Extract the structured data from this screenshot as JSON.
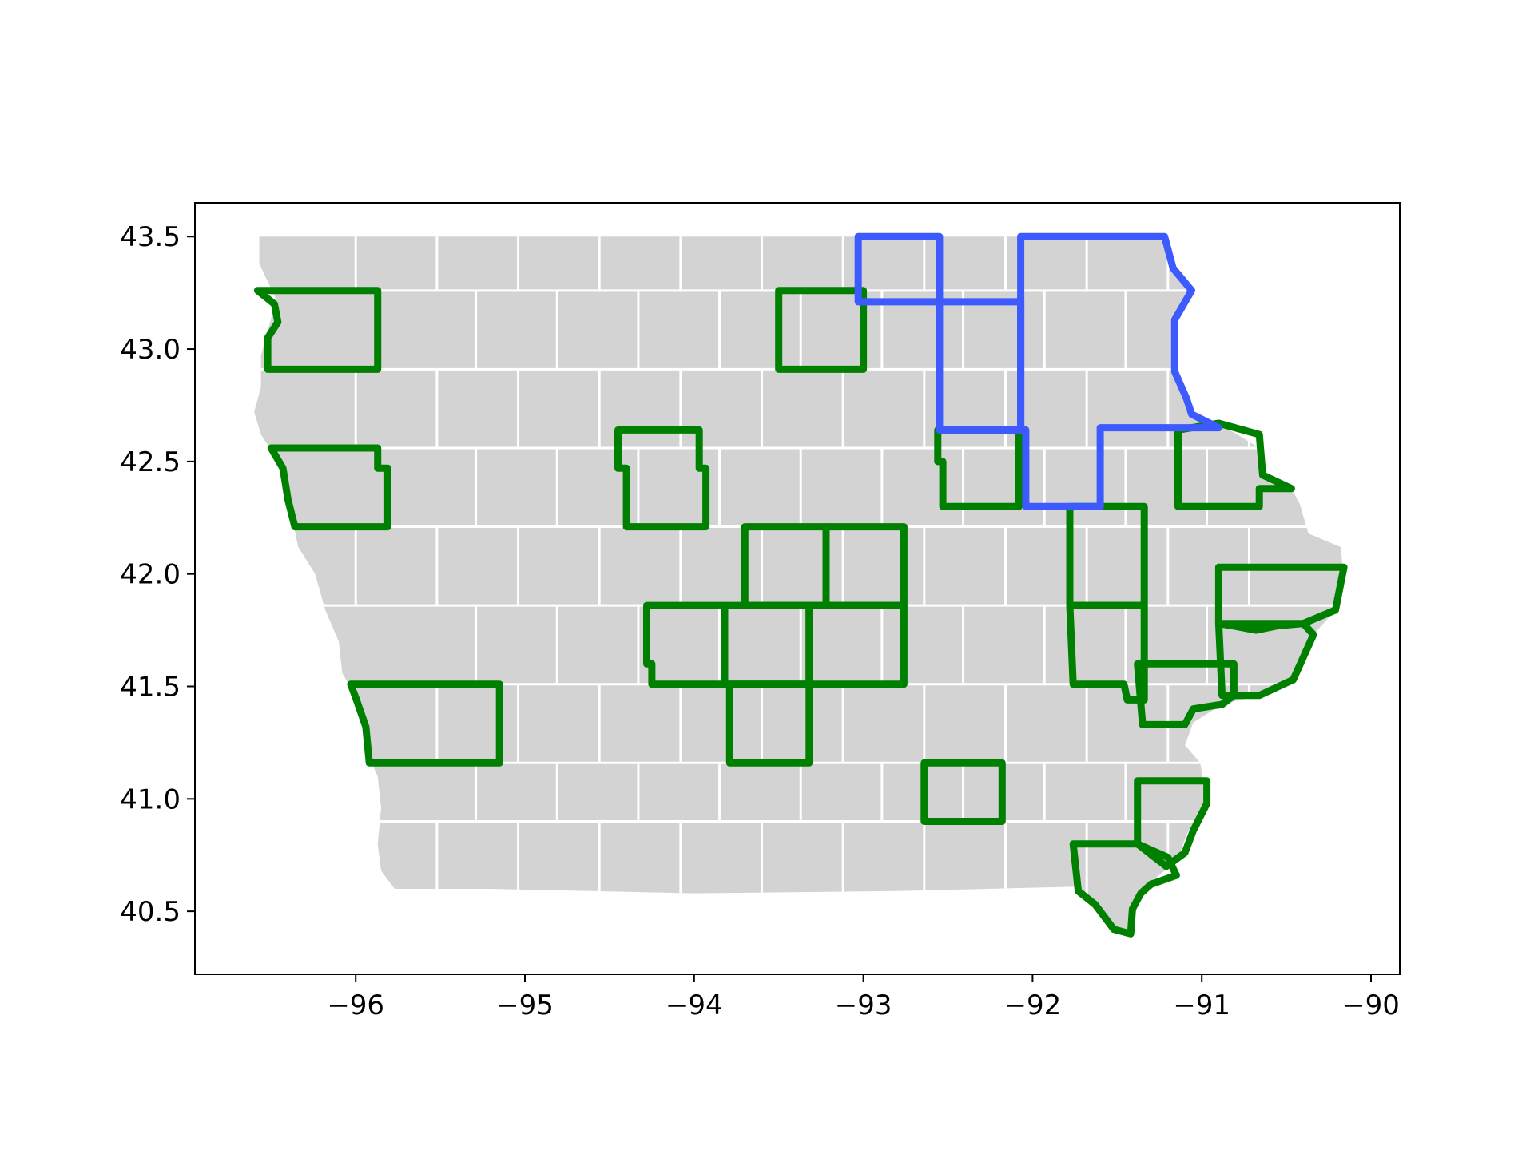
{
  "chart_data": {
    "type": "map",
    "title": "",
    "xlabel": "",
    "ylabel": "",
    "xlim": [
      -96.95,
      -89.83
    ],
    "ylim": [
      40.22,
      43.65
    ],
    "x_ticks": [
      -96,
      -95,
      -94,
      -93,
      -92,
      -91,
      -90
    ],
    "x_tick_labels": [
      "−96",
      "−95",
      "−94",
      "−93",
      "−92",
      "−91",
      "−90"
    ],
    "y_ticks": [
      40.5,
      41.0,
      41.5,
      42.0,
      42.5,
      43.0,
      43.5
    ],
    "y_tick_labels": [
      "40.5",
      "41.0",
      "41.5",
      "42.0",
      "42.5",
      "43.0",
      "43.5"
    ],
    "grid": false,
    "legend": "none",
    "colors": {
      "land_fill": "#d3d3d3",
      "county_border": "#ffffff",
      "green_outline": "#008000",
      "blue_outline": "#3d5afe",
      "axis": "#000000"
    },
    "state_outline": [
      [
        -96.57,
        43.5
      ],
      [
        -91.22,
        43.5
      ],
      [
        -91.17,
        43.36
      ],
      [
        -91.06,
        43.26
      ],
      [
        -91.16,
        43.13
      ],
      [
        -91.16,
        42.9
      ],
      [
        -91.09,
        42.78
      ],
      [
        -91.06,
        42.71
      ],
      [
        -90.9,
        42.67
      ],
      [
        -90.66,
        42.56
      ],
      [
        -90.64,
        42.44
      ],
      [
        -90.47,
        42.38
      ],
      [
        -90.42,
        42.31
      ],
      [
        -90.37,
        42.18
      ],
      [
        -90.18,
        42.12
      ],
      [
        -90.16,
        41.98
      ],
      [
        -90.21,
        41.84
      ],
      [
        -90.34,
        41.73
      ],
      [
        -90.46,
        41.53
      ],
      [
        -90.66,
        41.46
      ],
      [
        -90.88,
        41.42
      ],
      [
        -91.05,
        41.34
      ],
      [
        -91.1,
        41.24
      ],
      [
        -91.01,
        41.16
      ],
      [
        -90.97,
        41.0
      ],
      [
        -91.09,
        40.84
      ],
      [
        -91.15,
        40.72
      ],
      [
        -91.36,
        40.6
      ],
      [
        -91.41,
        40.52
      ],
      [
        -91.43,
        40.4
      ],
      [
        -91.52,
        40.43
      ],
      [
        -91.63,
        40.53
      ],
      [
        -91.73,
        40.61
      ],
      [
        -92.8,
        40.59
      ],
      [
        -94.0,
        40.58
      ],
      [
        -95.2,
        40.6
      ],
      [
        -95.77,
        40.6
      ],
      [
        -95.85,
        40.68
      ],
      [
        -95.87,
        40.8
      ],
      [
        -95.85,
        40.96
      ],
      [
        -95.87,
        41.1
      ],
      [
        -95.93,
        41.2
      ],
      [
        -95.93,
        41.35
      ],
      [
        -96.01,
        41.47
      ],
      [
        -96.08,
        41.56
      ],
      [
        -96.1,
        41.7
      ],
      [
        -96.18,
        41.84
      ],
      [
        -96.24,
        42.0
      ],
      [
        -96.34,
        42.12
      ],
      [
        -96.37,
        42.23
      ],
      [
        -96.41,
        42.35
      ],
      [
        -96.45,
        42.49
      ],
      [
        -96.56,
        42.62
      ],
      [
        -96.6,
        42.72
      ],
      [
        -96.56,
        42.83
      ],
      [
        -96.56,
        42.97
      ],
      [
        -96.52,
        43.08
      ],
      [
        -96.47,
        43.22
      ],
      [
        -96.57,
        43.38
      ],
      [
        -96.57,
        43.5
      ]
    ],
    "county_grid": {
      "row_lines_lat": [
        43.26,
        42.91,
        42.56,
        42.21,
        41.86,
        41.51,
        41.16,
        40.9
      ],
      "col_lines_lon": [
        -96.0,
        -95.52,
        -95.04,
        -94.56,
        -94.08,
        -93.6,
        -93.12,
        -92.64,
        -92.16,
        -91.68,
        -91.2,
        -90.72
      ],
      "offset_cols_lon": [
        -95.29,
        -94.81,
        -94.33,
        -93.85,
        -93.37,
        -92.89,
        -92.41,
        -91.93,
        -91.45,
        -90.97
      ]
    },
    "highlighted_counties": [
      {
        "group": "green",
        "coords": [
          [
            -96.58,
            43.26
          ],
          [
            -95.87,
            43.26
          ],
          [
            -95.87,
            42.91
          ],
          [
            -96.52,
            42.91
          ],
          [
            -96.52,
            43.05
          ],
          [
            -96.46,
            43.12
          ],
          [
            -96.48,
            43.2
          ],
          [
            -96.58,
            43.26
          ]
        ]
      },
      {
        "group": "green",
        "coords": [
          [
            -96.5,
            42.56
          ],
          [
            -95.87,
            42.56
          ],
          [
            -95.87,
            42.47
          ],
          [
            -95.81,
            42.47
          ],
          [
            -95.81,
            42.21
          ],
          [
            -96.36,
            42.21
          ],
          [
            -96.4,
            42.33
          ],
          [
            -96.43,
            42.47
          ],
          [
            -96.5,
            42.56
          ]
        ]
      },
      {
        "group": "green",
        "coords": [
          [
            -96.03,
            41.51
          ],
          [
            -95.15,
            41.51
          ],
          [
            -95.15,
            41.16
          ],
          [
            -95.92,
            41.16
          ],
          [
            -95.94,
            41.32
          ],
          [
            -96.0,
            41.45
          ],
          [
            -96.03,
            41.51
          ]
        ]
      },
      {
        "group": "green",
        "coords": [
          [
            -93.5,
            43.26
          ],
          [
            -93.0,
            43.26
          ],
          [
            -93.0,
            42.91
          ],
          [
            -93.5,
            42.91
          ],
          [
            -93.5,
            43.26
          ]
        ]
      },
      {
        "group": "green",
        "coords": [
          [
            -94.45,
            42.64
          ],
          [
            -93.97,
            42.64
          ],
          [
            -93.97,
            42.47
          ],
          [
            -93.93,
            42.47
          ],
          [
            -93.93,
            42.21
          ],
          [
            -94.4,
            42.21
          ],
          [
            -94.4,
            42.47
          ],
          [
            -94.45,
            42.47
          ],
          [
            -94.45,
            42.64
          ]
        ]
      },
      {
        "group": "green",
        "coords": [
          [
            -93.7,
            42.21
          ],
          [
            -93.22,
            42.21
          ],
          [
            -93.22,
            41.86
          ],
          [
            -93.7,
            41.86
          ],
          [
            -93.7,
            42.21
          ]
        ]
      },
      {
        "group": "green",
        "coords": [
          [
            -93.22,
            42.21
          ],
          [
            -92.76,
            42.21
          ],
          [
            -92.76,
            41.86
          ],
          [
            -93.22,
            41.86
          ],
          [
            -93.22,
            42.21
          ]
        ]
      },
      {
        "group": "green",
        "coords": [
          [
            -94.28,
            41.86
          ],
          [
            -93.82,
            41.86
          ],
          [
            -93.82,
            41.51
          ],
          [
            -94.25,
            41.51
          ],
          [
            -94.25,
            41.6
          ],
          [
            -94.28,
            41.6
          ],
          [
            -94.28,
            41.86
          ]
        ]
      },
      {
        "group": "green",
        "coords": [
          [
            -93.82,
            41.86
          ],
          [
            -93.32,
            41.86
          ],
          [
            -93.32,
            41.51
          ],
          [
            -93.82,
            41.51
          ],
          [
            -93.82,
            41.86
          ]
        ]
      },
      {
        "group": "green",
        "coords": [
          [
            -93.32,
            41.86
          ],
          [
            -92.76,
            41.86
          ],
          [
            -92.76,
            41.51
          ],
          [
            -93.32,
            41.51
          ],
          [
            -93.32,
            41.86
          ]
        ]
      },
      {
        "group": "green",
        "coords": [
          [
            -93.79,
            41.51
          ],
          [
            -93.32,
            41.51
          ],
          [
            -93.32,
            41.16
          ],
          [
            -93.79,
            41.16
          ],
          [
            -93.79,
            41.51
          ]
        ]
      },
      {
        "group": "green",
        "coords": [
          [
            -92.64,
            41.16
          ],
          [
            -92.18,
            41.16
          ],
          [
            -92.18,
            40.9
          ],
          [
            -92.64,
            40.9
          ],
          [
            -92.64,
            41.16
          ]
        ]
      },
      {
        "group": "green",
        "coords": [
          [
            -92.56,
            42.64
          ],
          [
            -92.08,
            42.64
          ],
          [
            -92.08,
            42.3
          ],
          [
            -92.53,
            42.3
          ],
          [
            -92.53,
            42.5
          ],
          [
            -92.56,
            42.5
          ],
          [
            -92.56,
            42.64
          ]
        ]
      },
      {
        "group": "green",
        "coords": [
          [
            -91.78,
            42.3
          ],
          [
            -91.34,
            42.3
          ],
          [
            -91.34,
            41.86
          ],
          [
            -91.78,
            41.86
          ],
          [
            -91.78,
            42.3
          ]
        ]
      },
      {
        "group": "green",
        "coords": [
          [
            -91.78,
            41.86
          ],
          [
            -91.34,
            41.86
          ],
          [
            -91.34,
            41.44
          ],
          [
            -91.44,
            41.44
          ],
          [
            -91.46,
            41.51
          ],
          [
            -91.76,
            41.51
          ],
          [
            -91.78,
            41.86
          ]
        ]
      },
      {
        "group": "green",
        "coords": [
          [
            -91.14,
            42.64
          ],
          [
            -90.9,
            42.67
          ],
          [
            -90.66,
            42.62
          ],
          [
            -90.64,
            42.44
          ],
          [
            -90.47,
            42.38
          ],
          [
            -90.66,
            42.38
          ],
          [
            -90.66,
            42.3
          ],
          [
            -91.14,
            42.3
          ],
          [
            -91.14,
            42.64
          ]
        ]
      },
      {
        "group": "green",
        "coords": [
          [
            -90.9,
            42.03
          ],
          [
            -90.16,
            42.03
          ],
          [
            -90.21,
            41.84
          ],
          [
            -90.4,
            41.78
          ],
          [
            -90.55,
            41.77
          ],
          [
            -90.68,
            41.75
          ],
          [
            -90.82,
            41.77
          ],
          [
            -90.9,
            41.78
          ],
          [
            -90.9,
            42.03
          ]
        ]
      },
      {
        "group": "green",
        "coords": [
          [
            -90.9,
            41.78
          ],
          [
            -90.4,
            41.78
          ],
          [
            -90.34,
            41.73
          ],
          [
            -90.46,
            41.53
          ],
          [
            -90.66,
            41.46
          ],
          [
            -90.88,
            41.46
          ],
          [
            -90.9,
            41.78
          ]
        ]
      },
      {
        "group": "green",
        "coords": [
          [
            -91.38,
            41.6
          ],
          [
            -90.81,
            41.6
          ],
          [
            -90.81,
            41.46
          ],
          [
            -90.88,
            41.42
          ],
          [
            -91.05,
            41.4
          ],
          [
            -91.1,
            41.33
          ],
          [
            -91.35,
            41.33
          ],
          [
            -91.38,
            41.6
          ]
        ]
      },
      {
        "group": "green",
        "coords": [
          [
            -91.38,
            41.08
          ],
          [
            -90.97,
            41.08
          ],
          [
            -90.97,
            40.98
          ],
          [
            -91.05,
            40.86
          ],
          [
            -91.1,
            40.76
          ],
          [
            -91.21,
            40.7
          ],
          [
            -91.38,
            40.8
          ],
          [
            -91.38,
            41.08
          ]
        ]
      },
      {
        "group": "green",
        "coords": [
          [
            -91.76,
            40.8
          ],
          [
            -91.38,
            40.8
          ],
          [
            -91.2,
            40.74
          ],
          [
            -91.15,
            40.66
          ],
          [
            -91.3,
            40.62
          ],
          [
            -91.36,
            40.58
          ],
          [
            -91.41,
            40.51
          ],
          [
            -91.42,
            40.4
          ],
          [
            -91.52,
            40.42
          ],
          [
            -91.63,
            40.53
          ],
          [
            -91.73,
            40.59
          ],
          [
            -91.76,
            40.8
          ]
        ]
      },
      {
        "group": "blue",
        "coords": [
          [
            -93.03,
            43.5
          ],
          [
            -92.55,
            43.5
          ],
          [
            -92.55,
            43.21
          ],
          [
            -93.03,
            43.21
          ],
          [
            -93.03,
            43.5
          ]
        ]
      },
      {
        "group": "blue",
        "coords": [
          [
            -92.55,
            43.21
          ],
          [
            -92.07,
            43.21
          ],
          [
            -92.07,
            42.64
          ],
          [
            -92.55,
            42.64
          ],
          [
            -92.55,
            43.21
          ]
        ]
      },
      {
        "group": "blue",
        "coords": [
          [
            -92.07,
            43.5
          ],
          [
            -91.22,
            43.5
          ],
          [
            -91.17,
            43.36
          ],
          [
            -91.06,
            43.26
          ],
          [
            -91.16,
            43.13
          ],
          [
            -91.16,
            42.9
          ],
          [
            -91.09,
            42.78
          ],
          [
            -91.06,
            42.71
          ],
          [
            -90.9,
            42.65
          ],
          [
            -91.6,
            42.65
          ],
          [
            -91.6,
            42.3
          ],
          [
            -92.04,
            42.3
          ],
          [
            -92.04,
            42.64
          ],
          [
            -92.07,
            42.64
          ],
          [
            -92.07,
            43.5
          ]
        ]
      }
    ]
  }
}
